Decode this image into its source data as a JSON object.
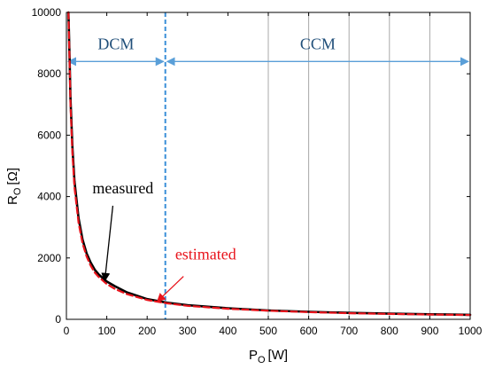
{
  "chart_data": {
    "type": "line",
    "xlabel": {
      "main": "P",
      "sub": "O",
      "unit": "[W]"
    },
    "ylabel": {
      "main": "R",
      "sub": "O",
      "unit": "[Ω]"
    },
    "xlim": [
      0,
      1000
    ],
    "ylim": [
      0,
      10000
    ],
    "x_ticks": [
      0,
      100,
      200,
      300,
      400,
      500,
      600,
      700,
      800,
      900,
      1000
    ],
    "x_tick_labels": [
      "0",
      "100",
      "200",
      "300",
      "400",
      "500",
      "600",
      "700",
      "800",
      "900",
      "1000"
    ],
    "y_ticks": [
      0,
      2000,
      4000,
      6000,
      8000,
      10000
    ],
    "y_tick_labels": [
      "0",
      "2000",
      "4000",
      "6000",
      "8000",
      "10000"
    ],
    "vertical_gridlines_x": [
      500,
      600,
      700,
      800,
      900
    ],
    "boundary_x": 245,
    "regions": [
      {
        "label": "DCM",
        "x_start": 0,
        "x_end": 245,
        "arrow_y": 8400
      },
      {
        "label": "CCM",
        "x_start": 245,
        "x_end": 1000,
        "arrow_y": 8400
      }
    ],
    "series": [
      {
        "name": "measured",
        "color": "#000000",
        "style": "solid",
        "x": [
          5,
          8,
          10,
          15,
          20,
          30,
          40,
          50,
          60,
          70,
          80,
          100,
          120,
          150,
          200,
          250,
          300,
          400,
          500,
          600,
          700,
          800,
          900,
          1000
        ],
        "y": [
          10000,
          8500,
          7200,
          5600,
          4500,
          3300,
          2600,
          2150,
          1850,
          1620,
          1460,
          1230,
          1080,
          880,
          660,
          540,
          460,
          360,
          290,
          245,
          210,
          185,
          165,
          148
        ]
      },
      {
        "name": "estimated",
        "color": "#e8141c",
        "style": "dashed",
        "x": [
          5,
          8,
          10,
          15,
          20,
          30,
          40,
          50,
          60,
          70,
          80,
          100,
          120,
          150,
          200,
          250,
          300,
          400,
          500,
          600,
          700,
          800,
          900,
          1000
        ],
        "y": [
          10000,
          8400,
          7000,
          5400,
          4300,
          3150,
          2480,
          2050,
          1750,
          1530,
          1380,
          1150,
          990,
          820,
          630,
          520,
          440,
          345,
          280,
          235,
          200,
          176,
          157,
          142
        ]
      }
    ],
    "annotations": [
      {
        "text": "measured",
        "color": "#000000",
        "text_x": 140,
        "text_y": 4100,
        "arrow_from": [
          115,
          3700
        ],
        "arrow_to": [
          95,
          1250
        ]
      },
      {
        "text": "estimated",
        "color": "#e8141c",
        "text_x": 345,
        "text_y": 1950,
        "arrow_from": [
          290,
          1400
        ],
        "arrow_to": [
          225,
          580
        ]
      }
    ],
    "colors": {
      "boundary": "#3a8fd8",
      "region_arrow": "#5a9fd8",
      "region_text": "#1f4e79",
      "grid": "#a8a8a8"
    }
  }
}
